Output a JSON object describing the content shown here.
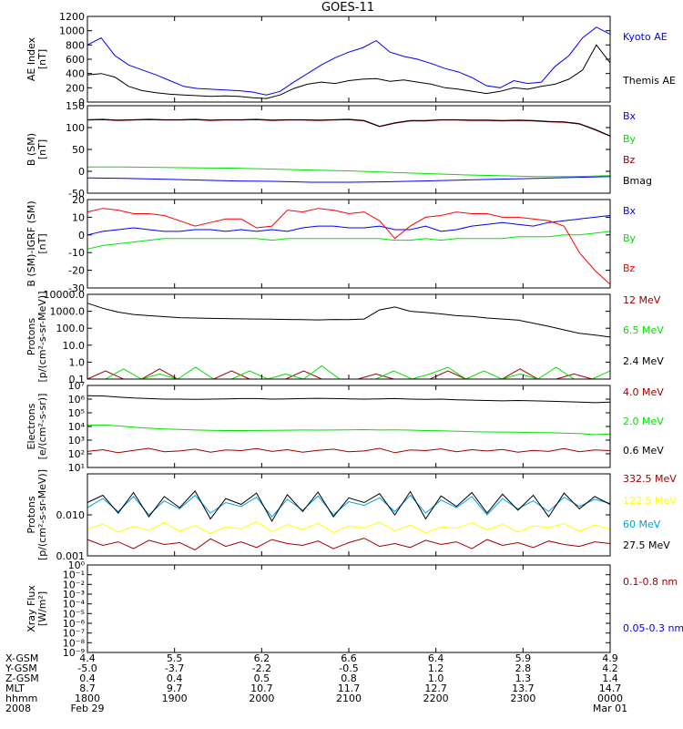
{
  "title": "GOES-11",
  "colors": {
    "black": "#000000",
    "blue": "#0000ff",
    "red": "#ff0000",
    "darkred": "#a00000",
    "green": "#00e000",
    "yellow": "#ffff00",
    "cyan": "#00a0e0"
  },
  "chart_data": [
    {
      "type": "line",
      "ylabel": [
        "AE Index",
        "[nT]"
      ],
      "y_scale": "linear",
      "ylim": [
        0,
        1200
      ],
      "yticks": [
        0,
        200,
        400,
        600,
        800,
        1000,
        1200
      ],
      "ytick_labels": [
        "0",
        "200",
        "400",
        "600",
        "800",
        "1000",
        "1200"
      ],
      "series": [
        {
          "name": "Kyoto AE",
          "color": "blue",
          "values": [
            800,
            900,
            650,
            520,
            450,
            380,
            300,
            220,
            190,
            180,
            170,
            160,
            140,
            100,
            150,
            280,
            400,
            520,
            620,
            700,
            760,
            860,
            700,
            640,
            600,
            540,
            470,
            420,
            340,
            230,
            200,
            300,
            260,
            280,
            500,
            650,
            900,
            1050,
            950
          ]
        },
        {
          "name": "Themis AE",
          "color": "black",
          "values": [
            380,
            400,
            350,
            220,
            160,
            130,
            110,
            100,
            90,
            80,
            85,
            80,
            60,
            50,
            100,
            190,
            250,
            280,
            260,
            300,
            320,
            330,
            290,
            310,
            280,
            250,
            200,
            180,
            150,
            120,
            150,
            200,
            180,
            220,
            250,
            320,
            450,
            800,
            550
          ]
        }
      ]
    },
    {
      "type": "line",
      "ylabel": [
        "B (SM)",
        "[nT]"
      ],
      "y_scale": "linear",
      "ylim": [
        -50,
        150
      ],
      "yticks": [
        -50,
        0,
        50,
        100,
        150
      ],
      "ytick_labels": [
        "-50",
        "0",
        "50",
        "100",
        "150"
      ],
      "series": [
        {
          "name": "Bx",
          "color": "blue",
          "values": [
            -15,
            -16,
            -18,
            -20,
            -22,
            -23,
            -25,
            -25,
            -24,
            -22,
            -20,
            -18,
            -16,
            -14,
            -12
          ]
        },
        {
          "name": "By",
          "color": "green",
          "values": [
            10,
            10,
            9,
            8,
            7,
            5,
            3,
            1,
            -2,
            -5,
            -8,
            -10,
            -12,
            -12,
            -10
          ]
        },
        {
          "name": "Bz",
          "color": "darkred",
          "values": [
            117,
            118,
            116,
            117,
            118,
            117,
            117,
            118,
            116,
            117,
            117,
            118,
            116,
            117,
            117,
            116,
            117,
            118,
            115,
            102,
            110,
            115,
            115,
            117,
            117,
            116,
            116,
            115,
            116,
            115,
            113,
            112,
            108,
            95,
            80
          ]
        },
        {
          "name": "Bmag",
          "color": "black",
          "values": [
            118,
            119,
            117,
            118,
            119,
            118,
            118,
            119,
            117,
            118,
            118,
            119,
            117,
            118,
            118,
            117,
            118,
            119,
            116,
            103,
            111,
            116,
            116,
            118,
            118,
            117,
            117,
            116,
            117,
            116,
            114,
            113,
            109,
            96,
            81
          ]
        }
      ]
    },
    {
      "type": "line",
      "ylabel": [
        "B (SM)-IGRF (SM)",
        "[nT]"
      ],
      "y_scale": "linear",
      "ylim": [
        -30,
        20
      ],
      "yticks": [
        -30,
        -20,
        -10,
        0,
        10,
        20
      ],
      "ytick_labels": [
        "-30",
        "-20",
        "-10",
        "0",
        "10",
        "20"
      ],
      "series": [
        {
          "name": "Bx",
          "color": "blue",
          "values": [
            0,
            2,
            3,
            4,
            3,
            2,
            2,
            3,
            3,
            2,
            3,
            2,
            3,
            2,
            4,
            5,
            5,
            4,
            4,
            5,
            3,
            3,
            5,
            2,
            3,
            5,
            6,
            7,
            6,
            5,
            7,
            8,
            9,
            10,
            11
          ]
        },
        {
          "name": "By",
          "color": "green",
          "values": [
            -8,
            -6,
            -5,
            -4,
            -3,
            -2,
            -2,
            -2,
            -2,
            -2,
            -2,
            -2,
            -3,
            -2,
            -2,
            -2,
            -2,
            -2,
            -2,
            -2,
            -3,
            -3,
            -2,
            -3,
            -2,
            -2,
            -2,
            -2,
            -1,
            -1,
            -1,
            0,
            0,
            1,
            2
          ]
        },
        {
          "name": "Bz",
          "color": "red",
          "values": [
            13,
            15,
            14,
            12,
            12,
            11,
            8,
            5,
            7,
            9,
            9,
            4,
            5,
            14,
            13,
            15,
            14,
            12,
            13,
            8,
            -2,
            5,
            10,
            11,
            13,
            12,
            12,
            10,
            10,
            9,
            8,
            5,
            -10,
            -20,
            -28
          ]
        }
      ]
    },
    {
      "type": "line",
      "ylabel": [
        "Protons",
        "[p/(cm²-s-sr-MeV)]"
      ],
      "y_scale": "log",
      "ylim": [
        0.1,
        10000
      ],
      "yticks": [
        0.1,
        1,
        10,
        100,
        1000,
        10000
      ],
      "ytick_labels": [
        "0.1",
        "1.0",
        "10.0",
        "100.0",
        "1000.0",
        "10000.0"
      ],
      "series": [
        {
          "name": "12 MeV",
          "color": "darkred",
          "values": [
            0.1,
            0.3,
            0.1,
            0.1,
            0.4,
            0.1,
            0.1,
            0.1,
            0.3,
            0.1,
            0.1,
            0.1,
            0.3,
            0.1,
            0.1,
            0.1,
            0.2,
            0.1,
            0.1,
            0.1,
            0.3,
            0.1,
            0.1,
            0.1,
            0.4,
            0.1,
            0.1,
            0.2,
            0.1,
            0.1
          ]
        },
        {
          "name": "6.5 MeV",
          "color": "green",
          "values": [
            0.1,
            0.1,
            0.4,
            0.1,
            0.2,
            0.1,
            0.5,
            0.1,
            0.1,
            0.3,
            0.1,
            0.2,
            0.1,
            0.6,
            0.1,
            0.1,
            0.1,
            0.3,
            0.1,
            0.2,
            0.5,
            0.1,
            0.3,
            0.1,
            0.2,
            0.1,
            0.5,
            0.1,
            0.1,
            0.3
          ]
        },
        {
          "name": "2.4 MeV",
          "color": "black",
          "values": [
            3000,
            1500,
            900,
            650,
            550,
            480,
            420,
            400,
            380,
            370,
            360,
            350,
            340,
            330,
            320,
            310,
            330,
            320,
            350,
            1200,
            1800,
            1000,
            850,
            700,
            550,
            500,
            400,
            350,
            300,
            200,
            130,
            80,
            50,
            40,
            30
          ]
        }
      ]
    },
    {
      "type": "line",
      "ylabel": [
        "Electrons",
        "[e/(cm²-s-sr)]"
      ],
      "y_scale": "log",
      "ylim": [
        10,
        10000000
      ],
      "yticks": [
        10,
        100,
        1000,
        10000,
        100000,
        1000000,
        10000000
      ],
      "ytick_labels": [
        "10¹",
        "10²",
        "10³",
        "10⁴",
        "10⁵",
        "10⁶",
        "10⁷"
      ],
      "series": [
        {
          "name": "4.0 MeV",
          "color": "darkred",
          "values": [
            150,
            200,
            120,
            180,
            250,
            140,
            160,
            220,
            130,
            190,
            170,
            240,
            150,
            200,
            130,
            180,
            220,
            140,
            160,
            250,
            120,
            190,
            170,
            230,
            140,
            200,
            160,
            210,
            130,
            180,
            150,
            240,
            140,
            190,
            170
          ]
        },
        {
          "name": "2.0 MeV",
          "color": "green",
          "values": [
            12000,
            13000,
            11000,
            9000,
            7500,
            6500,
            6000,
            5500,
            5200,
            5000,
            5000,
            5100,
            5200,
            5300,
            5500,
            5400,
            5500,
            5600,
            5800,
            5500,
            5600,
            5400,
            5000,
            4800,
            4500,
            4200,
            4000,
            3900,
            3800,
            3600,
            3500,
            3200,
            3000,
            2500,
            2800
          ]
        },
        {
          "name": "0.6 MeV",
          "color": "black",
          "values": [
            1800000,
            1700000,
            1400000,
            1200000,
            1100000,
            1000000,
            1000000,
            950000,
            1000000,
            1050000,
            1100000,
            1100000,
            1000000,
            1050000,
            1100000,
            1150000,
            1100000,
            1050000,
            1000000,
            1050000,
            1100000,
            1000000,
            950000,
            1000000,
            900000,
            850000,
            800000,
            750000,
            800000,
            750000,
            700000,
            650000,
            600000,
            550000,
            600000
          ]
        }
      ]
    },
    {
      "type": "line",
      "ylabel": [
        "Protons",
        "[p/(cm²-s-sr-MeV)]"
      ],
      "y_scale": "log",
      "ylim": [
        0.001,
        0.1
      ],
      "yticks": [
        0.001,
        0.01
      ],
      "ytick_labels": [
        "0.001",
        "0.010"
      ],
      "series": [
        {
          "name": "332.5 MeV",
          "color": "darkred",
          "values": [
            0.0025,
            0.0018,
            0.0022,
            0.0015,
            0.0024,
            0.0019,
            0.0021,
            0.0014,
            0.0026,
            0.0017,
            0.0022,
            0.0016,
            0.0025,
            0.002,
            0.0018,
            0.0023,
            0.0015,
            0.0021,
            0.0027,
            0.0017,
            0.002,
            0.0016,
            0.0024,
            0.0019,
            0.0022,
            0.0015,
            0.0025,
            0.0018,
            0.0021,
            0.0016,
            0.0023,
            0.0019,
            0.0017,
            0.0022,
            0.002
          ]
        },
        {
          "name": "122.5 MeV",
          "color": "yellow",
          "values": [
            0.0045,
            0.006,
            0.0038,
            0.0052,
            0.0042,
            0.0065,
            0.004,
            0.0055,
            0.0035,
            0.005,
            0.0046,
            0.0068,
            0.0039,
            0.0058,
            0.0044,
            0.0062,
            0.0037,
            0.0053,
            0.0048,
            0.0066,
            0.0041,
            0.0057,
            0.0036,
            0.0051,
            0.0047,
            0.0064,
            0.0043,
            0.0059,
            0.0038,
            0.0054,
            0.0049,
            0.0061,
            0.004,
            0.0056,
            0.0045
          ]
        },
        {
          "name": "60 MeV",
          "color": "cyan",
          "values": [
            0.015,
            0.025,
            0.012,
            0.028,
            0.01,
            0.022,
            0.014,
            0.03,
            0.011,
            0.02,
            0.016,
            0.027,
            0.009,
            0.024,
            0.013,
            0.029,
            0.01,
            0.021,
            0.017,
            0.026,
            0.012,
            0.03,
            0.011,
            0.023,
            0.015,
            0.028,
            0.01,
            0.025,
            0.014,
            0.022,
            0.012,
            0.027,
            0.016,
            0.024,
            0.019
          ]
        },
        {
          "name": "27.5 MeV",
          "color": "black",
          "values": [
            0.02,
            0.03,
            0.011,
            0.035,
            0.009,
            0.028,
            0.015,
            0.038,
            0.008,
            0.025,
            0.018,
            0.034,
            0.007,
            0.031,
            0.012,
            0.036,
            0.009,
            0.026,
            0.02,
            0.033,
            0.01,
            0.037,
            0.008,
            0.029,
            0.016,
            0.035,
            0.011,
            0.032,
            0.013,
            0.03,
            0.009,
            0.034,
            0.014,
            0.028,
            0.018
          ]
        }
      ]
    },
    {
      "type": "line",
      "ylabel": [
        "Xray Flux",
        "[W/m²]"
      ],
      "y_scale": "log",
      "ylim": [
        1e-09,
        1
      ],
      "yticks": [
        1e-09,
        1e-08,
        1e-07,
        1e-06,
        1e-05,
        0.0001,
        0.001,
        0.01,
        0.1,
        1
      ],
      "ytick_labels": [
        "10⁻⁹",
        "10⁻⁸",
        "10⁻⁷",
        "10⁻⁶",
        "10⁻⁵",
        "10⁻⁴",
        "10⁻³",
        "10⁻²",
        "10⁻¹",
        "10⁰"
      ],
      "series": [
        {
          "name": "0.1-0.8 nm",
          "color": "darkred",
          "values": []
        },
        {
          "name": "0.05-0.3 nm",
          "color": "blue",
          "values": []
        }
      ]
    }
  ],
  "x_axis": {
    "rows": [
      {
        "label": "X-GSM",
        "values": [
          "4.4",
          "5.5",
          "6.2",
          "6.6",
          "6.4",
          "5.9",
          "4.9"
        ]
      },
      {
        "label": "Y-GSM",
        "values": [
          "-5.0",
          "-3.7",
          "-2.2",
          "-0.5",
          "1.2",
          "2.8",
          "4.2"
        ]
      },
      {
        "label": "Z-GSM",
        "values": [
          "0.4",
          "0.4",
          "0.5",
          "0.8",
          "1.0",
          "1.3",
          "1.4"
        ]
      },
      {
        "label": "MLT",
        "values": [
          "8.7",
          "9.7",
          "10.7",
          "11.7",
          "12.7",
          "13.7",
          "14.7"
        ]
      },
      {
        "label": "hhmm",
        "values": [
          "1800",
          "1900",
          "2000",
          "2100",
          "2200",
          "2300",
          "0000"
        ]
      },
      {
        "label": "2008",
        "values": [
          "Feb 29",
          "",
          "",
          "",
          "",
          "",
          "Mar 01"
        ]
      }
    ]
  }
}
